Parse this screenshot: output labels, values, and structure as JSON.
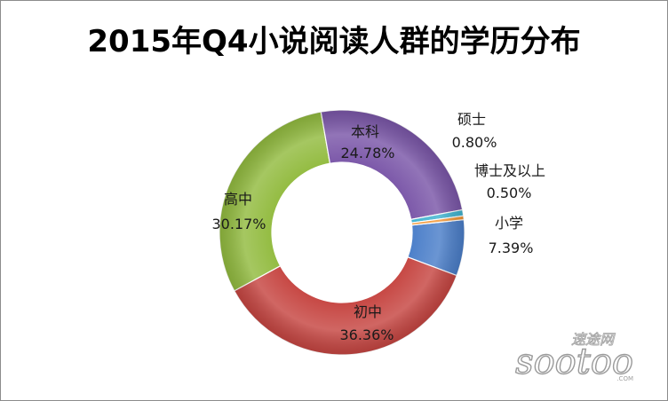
{
  "chart_data": {
    "type": "pie",
    "title": "2015年Q4小说阅读人群的学历分布",
    "slices": [
      {
        "label": "小学",
        "value": 7.39,
        "value_label": "7.39%",
        "color": "#4a7ec9"
      },
      {
        "label": "初中",
        "value": 36.36,
        "value_label": "36.36%",
        "color": "#c64541"
      },
      {
        "label": "高中",
        "value": 30.17,
        "value_label": "30.17%",
        "color": "#92bb3f"
      },
      {
        "label": "本科",
        "value": 24.78,
        "value_label": "24.78%",
        "color": "#7a56a8"
      },
      {
        "label": "硕士",
        "value": 0.8,
        "value_label": "0.80%",
        "color": "#3fb3d0"
      },
      {
        "label": "博士及以上",
        "value": 0.5,
        "value_label": "0.50%",
        "color": "#f29432"
      }
    ],
    "legend": "none"
  },
  "watermark": {
    "name_cn": "速途网",
    "name_latin": "sootoo",
    "domain": ".COM"
  }
}
